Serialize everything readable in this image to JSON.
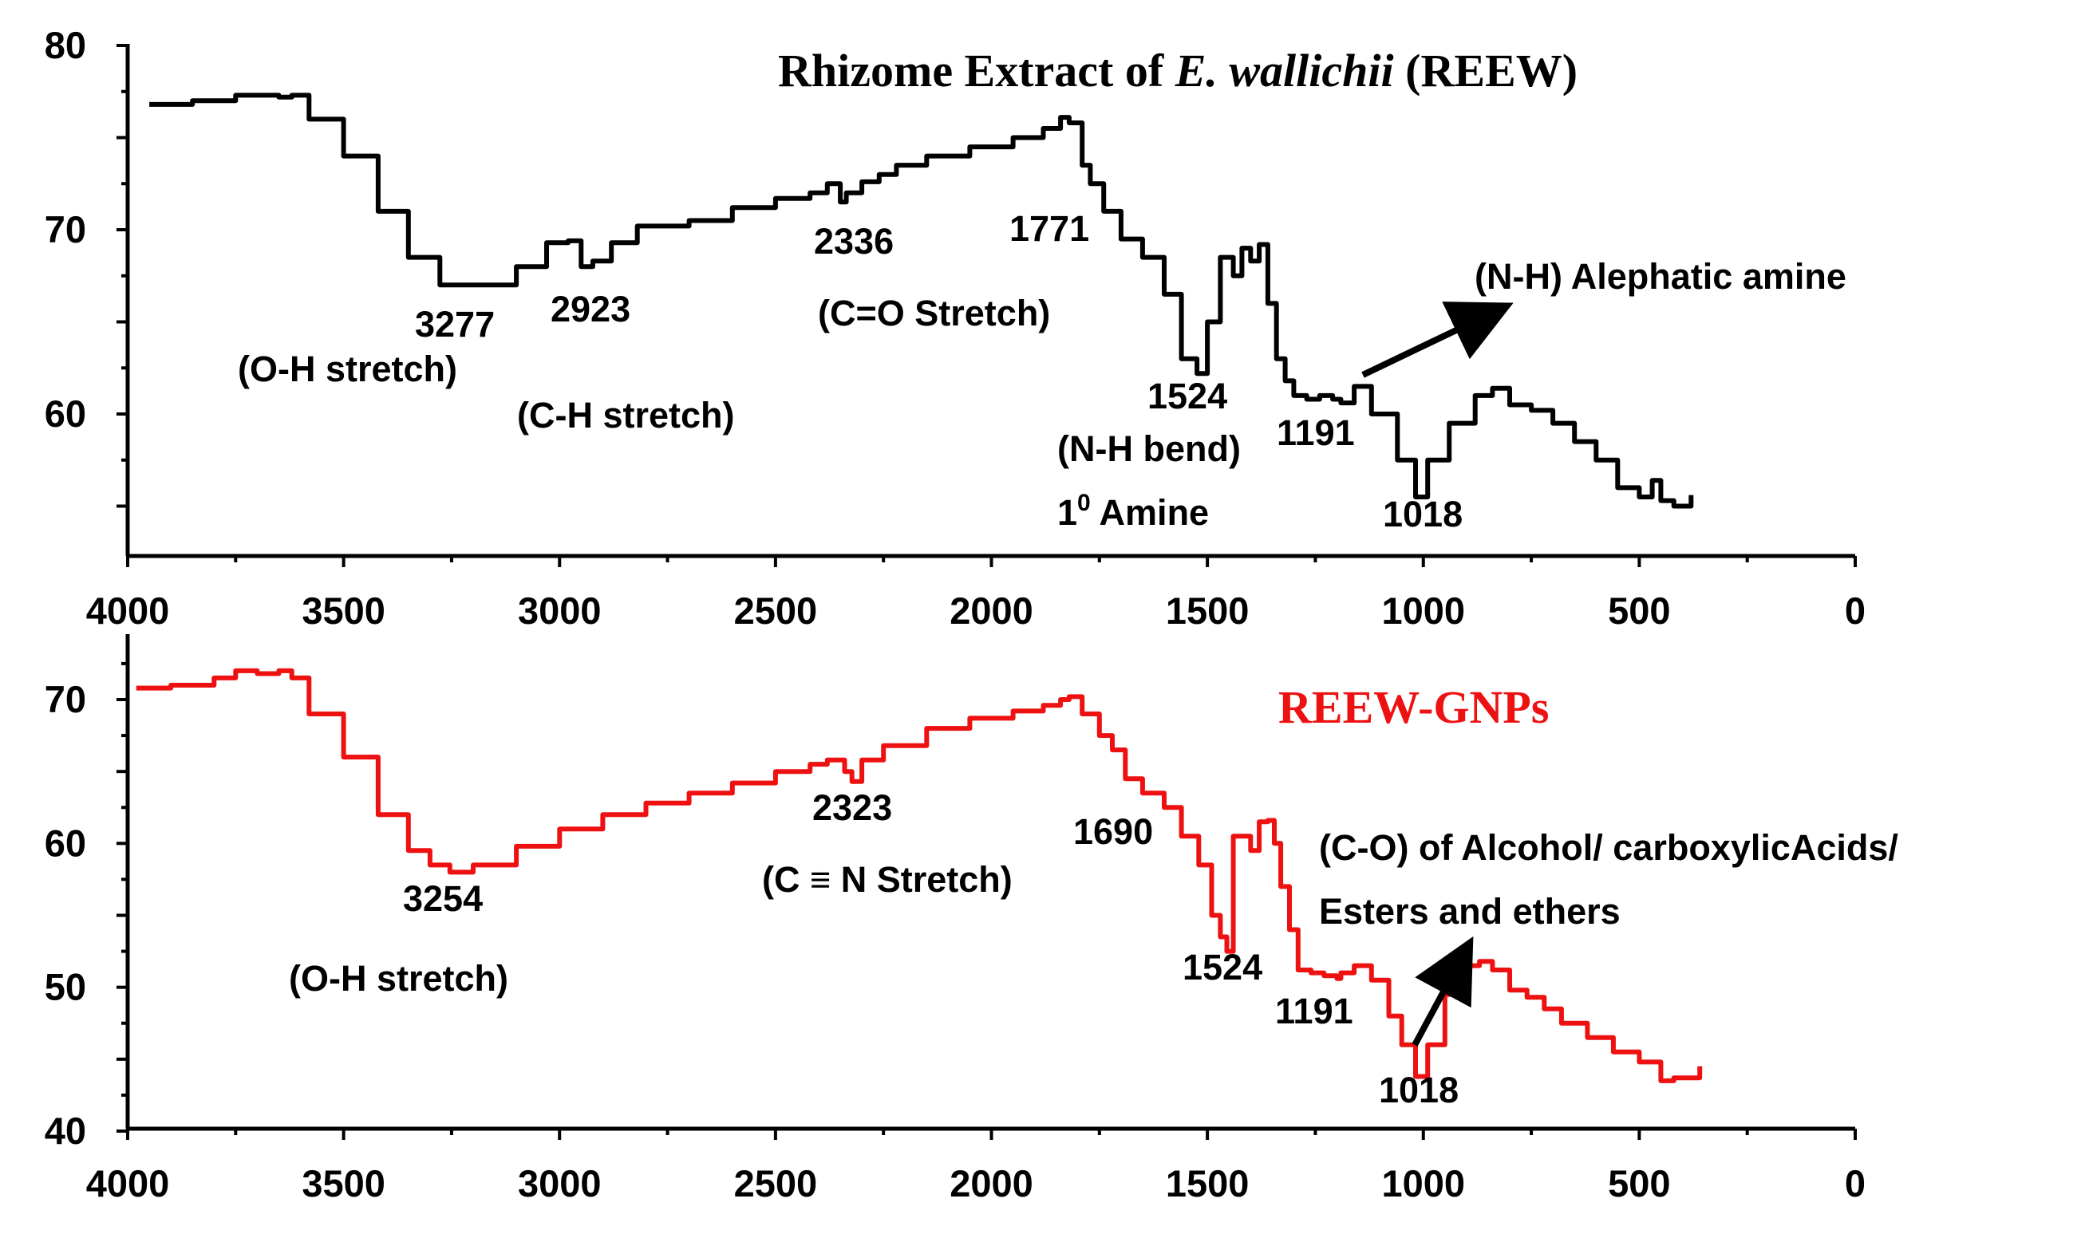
{
  "chart_data": [
    {
      "type": "line",
      "title": "Rhizome Extract of E. wallichii (REEW)",
      "title_parts": [
        "Rhizome Extract of ",
        "E. wallichii",
        " (REEW)"
      ],
      "xlim": [
        4000,
        0
      ],
      "ylim": [
        54,
        80
      ],
      "x_ticks": [
        "4000",
        "3500",
        "3000",
        "2500",
        "2000",
        "1500",
        "1000",
        "500",
        "0"
      ],
      "y_ticks": [
        "60",
        "70",
        "80"
      ],
      "line_color": "#000000",
      "grid": false,
      "series": [
        {
          "x": [
            3950,
            3850,
            3750,
            3650,
            3620,
            3580,
            3500,
            3420,
            3350,
            3277,
            3200,
            3100,
            3030,
            2980,
            2950,
            2923,
            2880,
            2820,
            2700,
            2600,
            2500,
            2420,
            2380,
            2350,
            2336,
            2300,
            2260,
            2220,
            2150,
            2050,
            1950,
            1880,
            1840,
            1820,
            1790,
            1771,
            1740,
            1700,
            1650,
            1600,
            1560,
            1524,
            1500,
            1470,
            1440,
            1420,
            1400,
            1380,
            1360,
            1340,
            1320,
            1300,
            1270,
            1240,
            1210,
            1191,
            1160,
            1120,
            1060,
            1018,
            990,
            940,
            880,
            840,
            800,
            750,
            700,
            650,
            600,
            550,
            500,
            470,
            450,
            420,
            380
          ],
          "y": [
            76.8,
            77.0,
            77.3,
            77.2,
            77.3,
            76.0,
            74.0,
            71.0,
            68.5,
            67.0,
            67.0,
            68.0,
            69.3,
            69.4,
            68.0,
            68.3,
            69.3,
            70.2,
            70.5,
            71.2,
            71.7,
            72.0,
            72.5,
            71.5,
            72.0,
            72.6,
            73.0,
            73.5,
            74.0,
            74.5,
            75.0,
            75.5,
            76.1,
            75.8,
            73.5,
            72.5,
            71.0,
            69.5,
            68.5,
            66.5,
            63.0,
            62.2,
            65.0,
            68.5,
            67.5,
            69.0,
            68.3,
            69.2,
            66.0,
            63.0,
            61.8,
            61.0,
            60.8,
            61.0,
            60.8,
            60.6,
            61.5,
            60.0,
            57.5,
            55.5,
            57.5,
            59.5,
            61.0,
            61.4,
            60.5,
            60.2,
            59.5,
            58.5,
            57.5,
            56.0,
            55.5,
            56.4,
            55.3,
            55.0,
            55.6
          ]
        }
      ],
      "annotations": [
        "3277",
        "2923",
        "(O-H stretch)",
        "(C-H stretch)",
        "2336",
        "(C=O Stretch)",
        "1771",
        "1524",
        "(N-H bend)",
        "1",
        "0",
        " Amine",
        "1191",
        "1018",
        "(N-H) Alephatic amine"
      ]
    },
    {
      "type": "line",
      "title": "REEW-GNPs",
      "xlim": [
        4000,
        0
      ],
      "ylim": [
        40,
        73
      ],
      "x_ticks": [
        "4000",
        "3500",
        "3000",
        "2500",
        "2000",
        "1500",
        "1000",
        "500",
        "0"
      ],
      "y_ticks": [
        "40",
        "50",
        "60",
        "70"
      ],
      "line_color": "#ee1111",
      "grid": false,
      "series": [
        {
          "x": [
            3980,
            3900,
            3800,
            3750,
            3700,
            3650,
            3620,
            3580,
            3500,
            3420,
            3350,
            3300,
            3254,
            3200,
            3100,
            3000,
            2900,
            2800,
            2700,
            2600,
            2500,
            2420,
            2380,
            2340,
            2323,
            2300,
            2250,
            2150,
            2050,
            1950,
            1880,
            1840,
            1820,
            1790,
            1750,
            1720,
            1690,
            1650,
            1600,
            1560,
            1520,
            1490,
            1470,
            1455,
            1440,
            1420,
            1400,
            1380,
            1360,
            1345,
            1330,
            1310,
            1290,
            1260,
            1230,
            1200,
            1191,
            1160,
            1120,
            1080,
            1050,
            1018,
            990,
            950,
            900,
            870,
            840,
            800,
            760,
            720,
            680,
            620,
            560,
            500,
            470,
            450,
            420,
            360
          ],
          "y": [
            70.8,
            71.0,
            71.5,
            72.0,
            71.8,
            72.0,
            71.5,
            69.0,
            66.0,
            62.0,
            59.5,
            58.5,
            58.0,
            58.5,
            59.8,
            61.0,
            62.0,
            62.8,
            63.5,
            64.2,
            65.0,
            65.5,
            65.8,
            65.0,
            64.3,
            65.8,
            66.8,
            68.0,
            68.7,
            69.2,
            69.6,
            70.0,
            70.2,
            69.0,
            67.5,
            66.5,
            64.5,
            63.5,
            62.5,
            60.5,
            58.5,
            55.0,
            53.5,
            52.5,
            60.5,
            60.5,
            59.5,
            61.5,
            61.6,
            60.0,
            57.0,
            54.0,
            51.2,
            51.0,
            50.8,
            50.6,
            51.0,
            51.5,
            50.5,
            48.0,
            46.0,
            43.8,
            46.0,
            49.5,
            51.5,
            51.8,
            51.2,
            49.8,
            49.3,
            48.5,
            47.5,
            46.5,
            45.5,
            44.8,
            44.8,
            43.5,
            43.7,
            44.5
          ]
        }
      ],
      "annotations": [
        "3254",
        "(O-H stretch)",
        "2323",
        "(C ≡ N Stretch)",
        "1690",
        "1524",
        "1191",
        "1018",
        "(C-O) of Alcohol/ carboxylicAcids/",
        "Esters and ethers"
      ]
    }
  ]
}
